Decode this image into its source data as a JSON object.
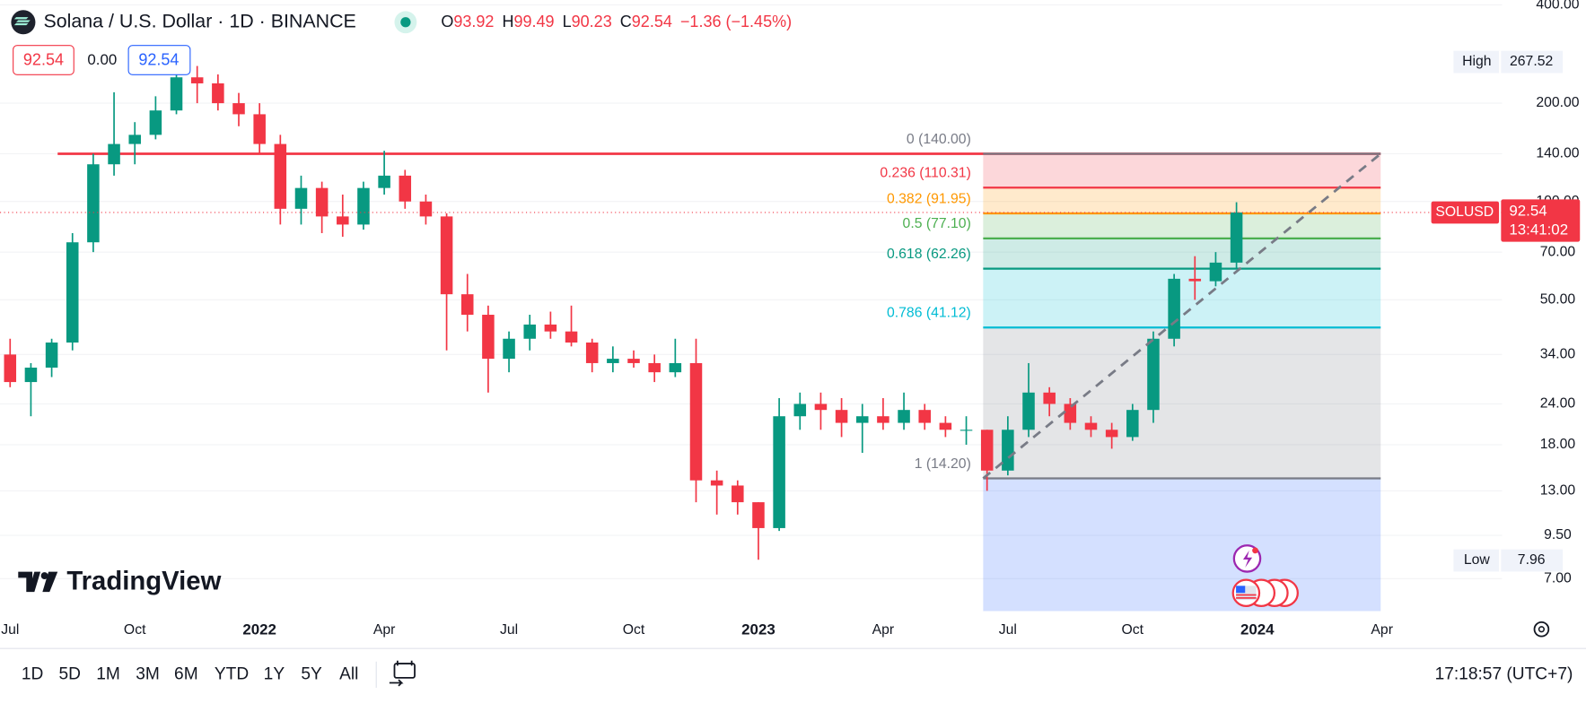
{
  "chart_data": {
    "type": "candlestick",
    "title": "Solana / U.S. Dollar · 1D · BINANCE",
    "ohlc_legend": [
      {
        "label": "O",
        "value": 93.92
      },
      {
        "label": "H",
        "value": 99.49
      },
      {
        "label": "L",
        "value": 90.23
      },
      {
        "label": "C",
        "value": 92.54
      }
    ],
    "change": "−1.36 (−1.45%)",
    "quote": {
      "bid": "92.54",
      "spread": "0.00",
      "ask": "92.54"
    },
    "categories": [
      "Jul",
      null,
      null,
      null,
      null,
      null,
      "Oct",
      null,
      null,
      null,
      null,
      null,
      "2022",
      null,
      null,
      null,
      null,
      null,
      "Apr",
      null,
      null,
      null,
      null,
      null,
      "Jul",
      null,
      null,
      null,
      null,
      null,
      "Oct",
      null,
      null,
      null,
      null,
      null,
      "2023",
      null,
      null,
      null,
      null,
      null,
      "Apr",
      null,
      null,
      null,
      null,
      null,
      "Jul",
      null,
      null,
      null,
      null,
      null,
      "Oct",
      null,
      null,
      null,
      null,
      null,
      "2024",
      null,
      null,
      null,
      null,
      null,
      "Apr",
      null,
      null,
      null,
      null,
      null
    ],
    "open": [
      34,
      28,
      31,
      37,
      75,
      130,
      150,
      160,
      190,
      240,
      230,
      200,
      185,
      150,
      95,
      110,
      90,
      85,
      110,
      120,
      100,
      90,
      52,
      45,
      33,
      38,
      42,
      40,
      37,
      32,
      33,
      32,
      30,
      32,
      14,
      13.5,
      12,
      10,
      22,
      24,
      23,
      21,
      22,
      21,
      23,
      21,
      20,
      20,
      15,
      20,
      26,
      24,
      21,
      20,
      19,
      23,
      38,
      58,
      57,
      65,
      null,
      null,
      null,
      null,
      null,
      null,
      null,
      null,
      null,
      null,
      null,
      null
    ],
    "high": [
      38,
      32,
      38,
      80,
      140,
      216,
      175,
      210,
      250,
      260,
      245,
      215,
      200,
      160,
      120,
      115,
      105,
      115,
      143,
      125,
      105,
      92,
      60,
      48,
      40,
      45,
      46,
      48,
      38,
      36,
      35,
      34,
      38,
      38,
      15,
      14,
      12,
      25,
      26,
      26,
      25,
      24,
      25,
      26,
      24,
      22,
      22,
      20,
      22,
      32,
      27,
      25,
      22,
      21,
      24,
      40,
      60,
      68,
      70,
      99.49,
      null,
      null,
      null,
      null,
      null,
      null,
      null,
      null,
      null,
      null,
      null,
      null
    ],
    "low": [
      27,
      22,
      29,
      35,
      70,
      120,
      130,
      155,
      185,
      200,
      190,
      170,
      140,
      85,
      85,
      80,
      78,
      82,
      105,
      95,
      85,
      35,
      40,
      26,
      30,
      35,
      38,
      36,
      30,
      30,
      31,
      28,
      29,
      12,
      11,
      11,
      8,
      9.8,
      20,
      20,
      19,
      17,
      20,
      20,
      20,
      19,
      18,
      13,
      14.5,
      19,
      22,
      20,
      19,
      17.5,
      18.5,
      21,
      36,
      50,
      55,
      62,
      null,
      null,
      null,
      null,
      null,
      null,
      null,
      null,
      null,
      null,
      null,
      null
    ],
    "close": [
      28,
      31,
      37,
      75,
      130,
      150,
      160,
      190,
      240,
      230,
      200,
      185,
      150,
      95,
      110,
      90,
      85,
      110,
      120,
      100,
      90,
      52,
      45,
      33,
      38,
      42,
      40,
      37,
      32,
      33,
      32,
      30,
      32,
      14,
      13.5,
      12,
      10,
      22,
      24,
      23,
      21,
      22,
      21,
      23,
      21,
      20,
      20,
      15,
      20,
      26,
      24,
      21,
      20,
      19,
      23,
      38,
      58,
      57,
      65,
      92.54,
      null,
      null,
      null,
      null,
      null,
      null,
      null,
      null,
      null,
      null,
      null,
      null
    ],
    "up_color": "#089981",
    "down_color": "#f23645",
    "log_scale": true,
    "grid": true,
    "ylim": [
      5.57,
      414
    ],
    "yticks": [
      {
        "value": 400,
        "label": "400.00"
      },
      {
        "value": 200,
        "label": "200.00"
      },
      {
        "value": 140,
        "label": "140.00"
      },
      {
        "value": 100,
        "label": "100.00"
      },
      {
        "value": 70,
        "label": "70.00"
      },
      {
        "value": 50,
        "label": "50.00"
      },
      {
        "value": 34,
        "label": "34.00"
      },
      {
        "value": 24,
        "label": "24.00"
      },
      {
        "value": 18,
        "label": "18.00"
      },
      {
        "value": 13,
        "label": "13.00"
      },
      {
        "value": 9.5,
        "label": "9.50"
      },
      {
        "value": 7,
        "label": "7.00"
      }
    ],
    "high_marker": {
      "label": "High",
      "value": 267.52
    },
    "low_marker": {
      "label": "Low",
      "value": 7.96
    },
    "symbol_tag": "SOLUSD",
    "countdown": "13:41:02",
    "horizontal_line": {
      "value": 140,
      "color": "#f23645"
    },
    "fib_levels": [
      {
        "label": "0 (140.00)",
        "value": 140,
        "color": "#787b86"
      },
      {
        "label": "0.236 (110.31)",
        "value": 110.31,
        "color": "#f23645"
      },
      {
        "label": "0.382 (91.95)",
        "value": 91.95,
        "color": "#ff9800"
      },
      {
        "label": "0.5 (77.10)",
        "value": 77.1,
        "color": "#4caf50"
      },
      {
        "label": "0.618 (62.26)",
        "value": 62.26,
        "color": "#089981"
      },
      {
        "label": "0.786 (41.12)",
        "value": 41.12,
        "color": "#00bcd4"
      },
      {
        "label": "1 (14.20)",
        "value": 14.2,
        "color": "#787b86"
      }
    ],
    "fib_extension_color": "#2962ff",
    "brand": "TradingView"
  },
  "toolbar": {
    "ranges": [
      "1D",
      "5D",
      "1M",
      "3M",
      "6M",
      "YTD",
      "1Y",
      "5Y",
      "All"
    ],
    "clock": "17:18:57 (UTC+7)"
  }
}
